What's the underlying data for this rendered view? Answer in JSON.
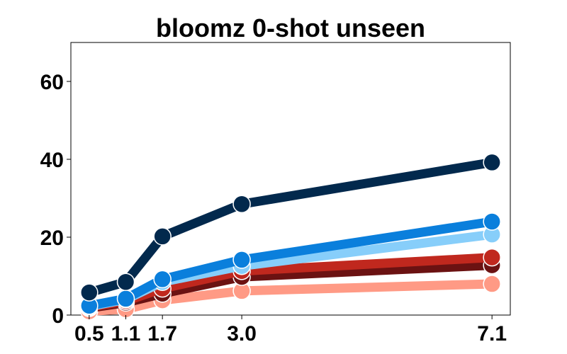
{
  "chart_data": {
    "type": "line",
    "title": "bloomz 0-shot unseen",
    "xlabel": "",
    "ylabel": "",
    "x": [
      0.5,
      1.1,
      1.7,
      3.0,
      7.1
    ],
    "x_tick_labels": [
      "0.5",
      "1.1",
      "1.7",
      "3.0",
      "7.1"
    ],
    "xlim": [
      0.2,
      7.4
    ],
    "ylim": [
      0,
      70
    ],
    "y_ticks": [
      0,
      20,
      40,
      60
    ],
    "y_tick_labels": [
      "0",
      "20",
      "40",
      "60"
    ],
    "grid": false,
    "series": [
      {
        "color": "#ff9a85",
        "values": [
          1.0,
          1.5,
          3.8,
          6.2,
          8.0
        ]
      },
      {
        "color": "#6b1212",
        "values": [
          1.8,
          3.2,
          5.5,
          9.8,
          12.8
        ]
      },
      {
        "color": "#c0281e",
        "values": [
          2.0,
          3.6,
          6.8,
          11.3,
          14.8
        ]
      },
      {
        "color": "#87cefa",
        "values": [
          2.2,
          4.0,
          8.5,
          12.6,
          20.7
        ]
      },
      {
        "color": "#0a7fdc",
        "values": [
          2.4,
          4.2,
          9.2,
          14.2,
          24.0
        ]
      },
      {
        "color": "#02294d",
        "values": [
          5.8,
          8.5,
          20.2,
          28.5,
          39.2
        ]
      }
    ]
  }
}
